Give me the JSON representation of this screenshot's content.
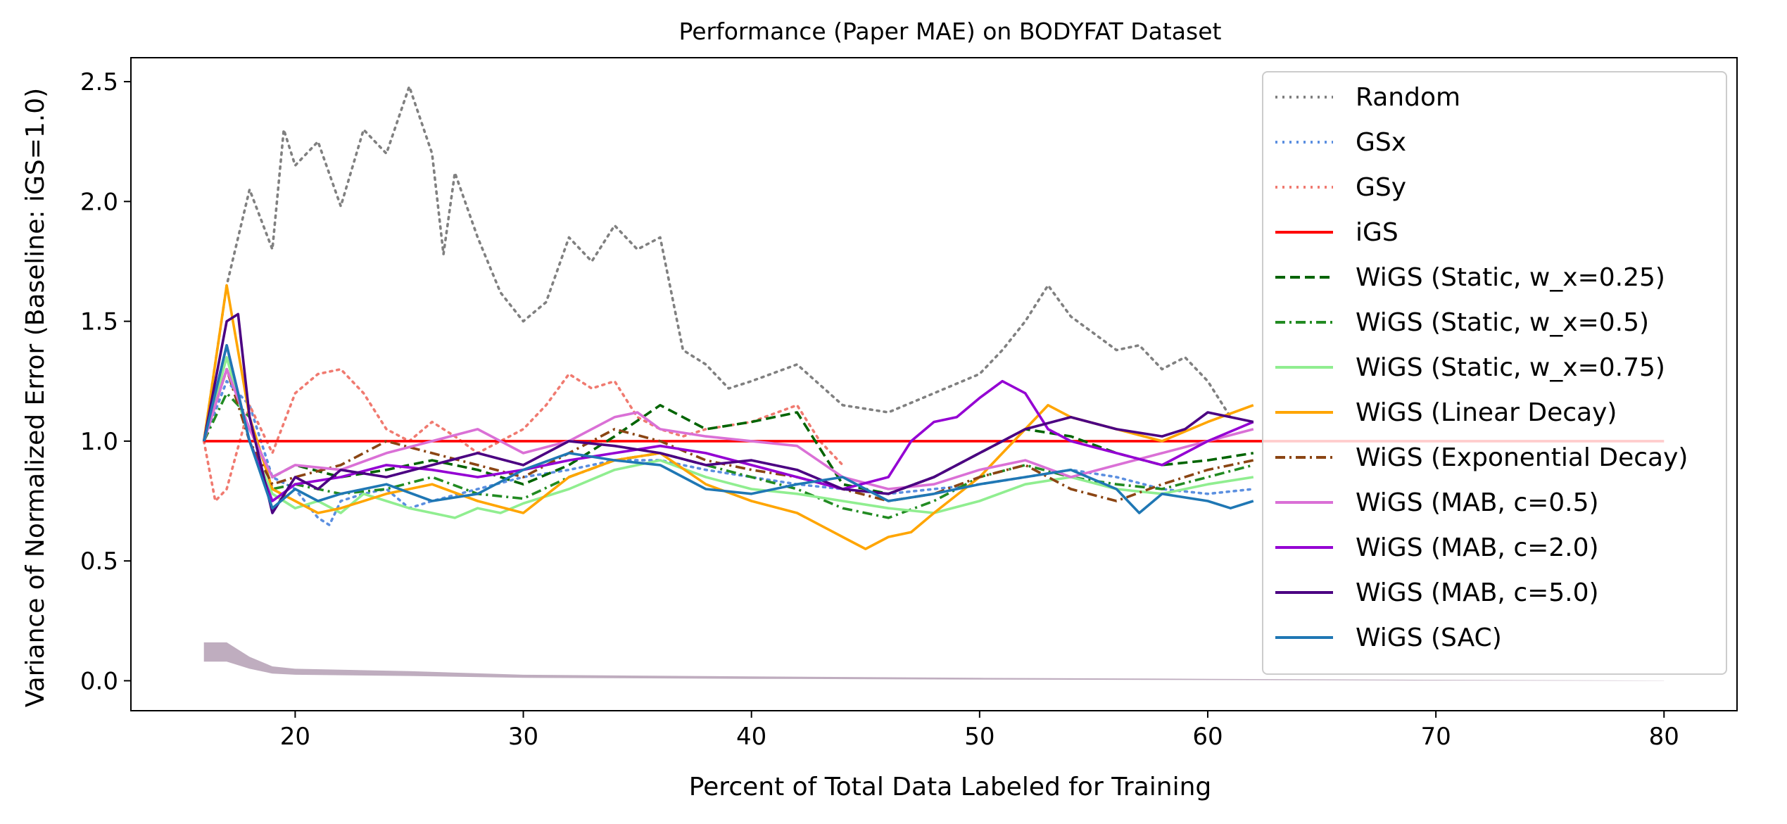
{
  "chart_data": {
    "type": "line",
    "title": "Performance (Paper MAE) on BODYFAT Dataset",
    "xlabel": "Percent of Total Data Labeled for Training",
    "ylabel": "Variance of Normalized Error (Baseline: iGS=1.0)",
    "xlim": [
      12.8,
      83.2
    ],
    "ylim": [
      -0.125,
      2.6
    ],
    "xticks": [
      "20",
      "30",
      "40",
      "50",
      "60",
      "70",
      "80"
    ],
    "yticks": [
      "0.0",
      "0.5",
      "1.0",
      "1.5",
      "2.0",
      "2.5"
    ],
    "grid": false,
    "legend_position": "top-right",
    "series": [
      {
        "name": "Random",
        "color": "#808080",
        "dash": "dotted",
        "x": [
          16,
          17,
          18,
          19,
          19.5,
          20,
          21,
          22,
          23,
          24,
          25,
          26,
          26.5,
          27,
          28,
          29,
          30,
          31,
          32,
          33,
          34,
          35,
          36,
          37,
          38,
          39,
          40,
          42,
          44,
          46,
          48,
          50,
          51,
          52,
          53,
          54,
          55,
          56,
          57,
          58,
          59,
          60,
          61
        ],
        "values": [
          1.0,
          1.65,
          2.05,
          1.8,
          2.3,
          2.15,
          2.25,
          1.98,
          2.3,
          2.2,
          2.48,
          2.2,
          1.78,
          2.12,
          1.85,
          1.62,
          1.5,
          1.58,
          1.85,
          1.75,
          1.9,
          1.8,
          1.85,
          1.38,
          1.32,
          1.22,
          1.25,
          1.32,
          1.15,
          1.12,
          1.2,
          1.28,
          1.38,
          1.5,
          1.65,
          1.52,
          1.45,
          1.38,
          1.4,
          1.3,
          1.35,
          1.25,
          1.1
        ]
      },
      {
        "name": "GSx",
        "color": "#5b8fe0",
        "dash": "dotted",
        "x": [
          16,
          17,
          18,
          19,
          20,
          21,
          21.5,
          22,
          23,
          24,
          25,
          26,
          28,
          30,
          32,
          34,
          36,
          38,
          40,
          42,
          44,
          46,
          48,
          50,
          52,
          54,
          56,
          58,
          60,
          62
        ],
        "values": [
          1.0,
          1.25,
          1.15,
          0.85,
          0.8,
          0.68,
          0.65,
          0.75,
          0.78,
          0.8,
          0.72,
          0.75,
          0.8,
          0.85,
          0.88,
          0.92,
          0.92,
          0.88,
          0.85,
          0.82,
          0.8,
          0.78,
          0.8,
          0.82,
          0.85,
          0.88,
          0.85,
          0.8,
          0.78,
          0.8
        ]
      },
      {
        "name": "GSy",
        "color": "#f07a70",
        "dash": "dotted",
        "x": [
          16,
          16.5,
          17,
          18,
          19,
          20,
          21,
          22,
          23,
          24,
          25,
          26,
          27,
          28,
          29,
          30,
          31,
          32,
          33,
          34,
          35,
          36,
          37,
          38,
          40,
          42,
          43,
          44
        ],
        "values": [
          1.0,
          0.75,
          0.8,
          1.15,
          0.95,
          1.2,
          1.28,
          1.3,
          1.2,
          1.05,
          1.0,
          1.08,
          1.02,
          0.95,
          1.0,
          1.05,
          1.15,
          1.28,
          1.22,
          1.25,
          1.1,
          1.05,
          1.02,
          1.05,
          1.08,
          1.15,
          1.0,
          0.9
        ]
      },
      {
        "name": "iGS",
        "color": "#ff0000",
        "dash": "solid",
        "x": [
          16,
          80
        ],
        "values": [
          1.0,
          1.0
        ]
      },
      {
        "name": "WiGS (Static, w_x=0.25)",
        "color": "#006400",
        "dash": "dashed",
        "x": [
          16,
          17,
          18,
          19,
          20,
          22,
          24,
          26,
          28,
          30,
          32,
          34,
          36,
          38,
          40,
          42,
          44,
          46,
          48,
          50,
          52,
          54,
          56,
          58,
          60,
          62
        ],
        "values": [
          1.0,
          1.3,
          1.05,
          0.85,
          0.9,
          0.85,
          0.88,
          0.92,
          0.88,
          0.82,
          0.9,
          1.02,
          1.15,
          1.05,
          1.08,
          1.12,
          0.82,
          0.78,
          0.85,
          0.95,
          1.05,
          1.02,
          0.95,
          0.9,
          0.92,
          0.95
        ]
      },
      {
        "name": "WiGS (Static, w_x=0.5)",
        "color": "#228b22",
        "dash": "dashdot",
        "x": [
          16,
          17,
          18,
          19,
          20,
          22,
          24,
          26,
          28,
          30,
          32,
          34,
          36,
          38,
          40,
          42,
          44,
          46,
          48,
          50,
          52,
          54,
          56,
          58,
          60,
          62
        ],
        "values": [
          1.0,
          1.2,
          1.1,
          0.8,
          0.82,
          0.78,
          0.8,
          0.85,
          0.78,
          0.76,
          0.85,
          0.92,
          0.95,
          0.9,
          0.85,
          0.8,
          0.72,
          0.68,
          0.75,
          0.85,
          0.9,
          0.85,
          0.82,
          0.8,
          0.85,
          0.9
        ]
      },
      {
        "name": "WiGS (Static, w_x=0.75)",
        "color": "#90ee90",
        "dash": "solid",
        "x": [
          16,
          17,
          18,
          19,
          20,
          21,
          22,
          23,
          24,
          25,
          26,
          27,
          28,
          29,
          30,
          32,
          34,
          36,
          38,
          40,
          42,
          44,
          46,
          48,
          50,
          52,
          54,
          56,
          58,
          60,
          62
        ],
        "values": [
          1.0,
          1.35,
          1.0,
          0.78,
          0.72,
          0.75,
          0.7,
          0.78,
          0.75,
          0.72,
          0.7,
          0.68,
          0.72,
          0.7,
          0.74,
          0.8,
          0.88,
          0.92,
          0.85,
          0.8,
          0.78,
          0.75,
          0.72,
          0.7,
          0.75,
          0.82,
          0.85,
          0.8,
          0.78,
          0.82,
          0.85
        ]
      },
      {
        "name": "WiGS (Linear Decay)",
        "color": "#ffa500",
        "dash": "solid",
        "x": [
          16,
          17,
          18,
          19,
          20,
          21,
          22,
          24,
          26,
          28,
          30,
          32,
          34,
          36,
          38,
          40,
          42,
          44,
          45,
          46,
          47,
          48,
          50,
          52,
          53,
          54,
          56,
          58,
          60,
          62
        ],
        "values": [
          1.0,
          1.65,
          1.1,
          0.8,
          0.75,
          0.7,
          0.72,
          0.78,
          0.82,
          0.75,
          0.7,
          0.85,
          0.92,
          0.95,
          0.82,
          0.75,
          0.7,
          0.6,
          0.55,
          0.6,
          0.62,
          0.7,
          0.85,
          1.05,
          1.15,
          1.1,
          1.05,
          1.0,
          1.08,
          1.15
        ]
      },
      {
        "name": "WiGS (Exponential Decay)",
        "color": "#8b4513",
        "dash": "dashdot",
        "x": [
          16,
          17,
          18,
          19,
          20,
          22,
          24,
          26,
          28,
          30,
          32,
          34,
          36,
          38,
          40,
          42,
          44,
          46,
          48,
          50,
          52,
          54,
          56,
          58,
          60,
          62
        ],
        "values": [
          1.0,
          1.3,
          1.0,
          0.82,
          0.85,
          0.9,
          1.0,
          0.95,
          0.9,
          0.85,
          0.95,
          1.05,
          1.0,
          0.92,
          0.88,
          0.85,
          0.8,
          0.75,
          0.78,
          0.85,
          0.9,
          0.8,
          0.75,
          0.82,
          0.88,
          0.92
        ]
      },
      {
        "name": "WiGS (MAB, c=0.5)",
        "color": "#da70d6",
        "dash": "solid",
        "x": [
          16,
          17,
          18,
          19,
          20,
          22,
          24,
          26,
          28,
          30,
          32,
          34,
          35,
          36,
          38,
          40,
          42,
          44,
          46,
          48,
          50,
          52,
          54,
          56,
          58,
          60,
          62
        ],
        "values": [
          1.0,
          1.3,
          1.05,
          0.85,
          0.9,
          0.88,
          0.95,
          1.0,
          1.05,
          0.95,
          1.0,
          1.1,
          1.12,
          1.05,
          1.02,
          1.0,
          0.98,
          0.85,
          0.8,
          0.82,
          0.88,
          0.92,
          0.85,
          0.9,
          0.95,
          1.0,
          1.05
        ]
      },
      {
        "name": "WiGS (MAB, c=2.0)",
        "color": "#9400d3",
        "dash": "solid",
        "x": [
          16,
          17,
          18,
          19,
          20,
          22,
          24,
          26,
          28,
          30,
          32,
          34,
          36,
          38,
          40,
          42,
          44,
          46,
          47,
          48,
          49,
          50,
          51,
          52,
          53,
          54,
          56,
          58,
          60,
          62
        ],
        "values": [
          1.0,
          1.4,
          1.0,
          0.75,
          0.82,
          0.85,
          0.9,
          0.88,
          0.85,
          0.88,
          0.92,
          0.95,
          0.98,
          0.95,
          0.9,
          0.85,
          0.8,
          0.85,
          1.0,
          1.08,
          1.1,
          1.18,
          1.25,
          1.2,
          1.05,
          1.0,
          0.95,
          0.9,
          1.0,
          1.08
        ]
      },
      {
        "name": "WiGS (MAB, c=5.0)",
        "color": "#4b0082",
        "dash": "solid",
        "x": [
          16,
          17,
          17.5,
          18,
          19,
          20,
          21,
          22,
          24,
          26,
          28,
          30,
          32,
          34,
          36,
          38,
          40,
          42,
          44,
          46,
          48,
          50,
          52,
          54,
          56,
          58,
          59,
          60,
          61,
          62
        ],
        "values": [
          1.0,
          1.5,
          1.53,
          1.1,
          0.7,
          0.85,
          0.8,
          0.88,
          0.85,
          0.9,
          0.95,
          0.9,
          1.0,
          0.98,
          0.95,
          0.9,
          0.92,
          0.88,
          0.8,
          0.78,
          0.85,
          0.95,
          1.05,
          1.1,
          1.05,
          1.02,
          1.05,
          1.12,
          1.1,
          1.08
        ]
      },
      {
        "name": "WiGS (SAC)",
        "color": "#1f77b4",
        "dash": "solid",
        "x": [
          16,
          17,
          18,
          19,
          20,
          21,
          22,
          24,
          26,
          28,
          30,
          32,
          34,
          36,
          38,
          40,
          42,
          44,
          46,
          48,
          50,
          52,
          54,
          56,
          57,
          58,
          60,
          61,
          62
        ],
        "values": [
          1.0,
          1.4,
          1.0,
          0.72,
          0.8,
          0.75,
          0.78,
          0.82,
          0.75,
          0.78,
          0.88,
          0.95,
          0.92,
          0.9,
          0.8,
          0.78,
          0.82,
          0.85,
          0.75,
          0.78,
          0.82,
          0.85,
          0.88,
          0.8,
          0.7,
          0.78,
          0.75,
          0.72,
          0.75
        ]
      }
    ],
    "variance_band": {
      "color": "#8a6a8a",
      "x": [
        16,
        17,
        18,
        19,
        20,
        25,
        30,
        40,
        50,
        60,
        70,
        80
      ],
      "upper": [
        0.16,
        0.16,
        0.1,
        0.06,
        0.05,
        0.04,
        0.025,
        0.018,
        0.012,
        0.008,
        0.004,
        0.001
      ],
      "lower": [
        0.08,
        0.08,
        0.05,
        0.03,
        0.025,
        0.02,
        0.012,
        0.008,
        0.005,
        0.003,
        0.001,
        0.0
      ]
    }
  }
}
